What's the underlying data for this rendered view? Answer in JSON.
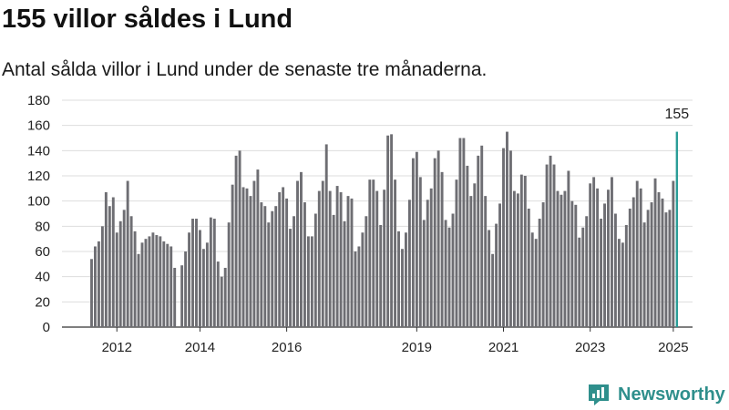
{
  "header": {
    "title": "155 villor såldes i Lund",
    "subtitle": "Antal sålda villor i Lund under de senaste tre månaderna."
  },
  "brand": {
    "name": "Newsworthy",
    "icon": "newsworthy-logo-icon",
    "color": "#2f8f8c"
  },
  "chart_data": {
    "type": "bar",
    "title": "155 villor såldes i Lund",
    "subtitle": "Antal sålda villor i Lund under de senaste tre månaderna.",
    "xlabel": "",
    "ylabel": "",
    "ylim": [
      0,
      180
    ],
    "yticks": [
      0,
      20,
      40,
      60,
      80,
      100,
      120,
      140,
      160,
      180
    ],
    "grid": true,
    "x_tick_labels": [
      "2012",
      "2014",
      "2016",
      "2019",
      "2021",
      "2023",
      "2025"
    ],
    "bar_color": "#6e6e73",
    "highlight_color": "#2a9d97",
    "highlight_label": "155",
    "values": [
      54,
      64,
      68,
      80,
      107,
      96,
      103,
      75,
      84,
      93,
      116,
      88,
      76,
      58,
      67,
      70,
      72,
      75,
      73,
      72,
      68,
      66,
      64,
      47,
      0,
      49,
      60,
      75,
      86,
      86,
      77,
      62,
      67,
      87,
      86,
      52,
      40,
      47,
      83,
      113,
      136,
      140,
      111,
      110,
      104,
      116,
      125,
      99,
      96,
      83,
      92,
      96,
      107,
      111,
      102,
      78,
      88,
      116,
      123,
      99,
      72,
      72,
      90,
      108,
      116,
      145,
      108,
      89,
      112,
      107,
      84,
      104,
      102,
      60,
      64,
      75,
      88,
      117,
      117,
      108,
      81,
      109,
      152,
      153,
      117,
      76,
      62,
      75,
      101,
      134,
      139,
      119,
      85,
      101,
      110,
      134,
      140,
      123,
      85,
      79,
      90,
      117,
      150,
      150,
      128,
      104,
      114,
      136,
      144,
      104,
      77,
      58,
      82,
      98,
      142,
      155,
      140,
      108,
      106,
      121,
      120,
      94,
      75,
      70,
      86,
      99,
      129,
      136,
      129,
      108,
      105,
      108,
      124,
      100,
      97,
      71,
      79,
      88,
      114,
      119,
      110,
      86,
      98,
      109,
      119,
      90,
      70,
      67,
      81,
      94,
      103,
      116,
      110,
      83,
      93,
      99,
      118,
      107,
      102,
      91,
      93,
      116,
      155
    ],
    "x_tick_index": [
      7,
      30,
      54,
      90,
      114,
      138,
      161
    ]
  }
}
